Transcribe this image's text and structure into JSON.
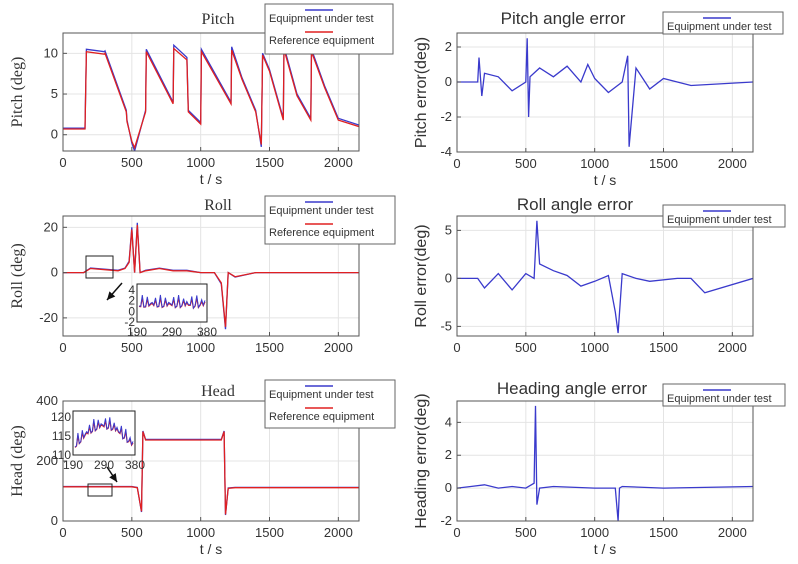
{
  "colors": {
    "test": "#3a3acc",
    "reference": "#e02020",
    "grid": "#e4e4e4",
    "axis": "#555555"
  },
  "chart_data": [
    {
      "type": "line",
      "title": "Pitch",
      "xlabel": "t / s",
      "ylabel": "Pitch (deg)",
      "xlim": [
        0,
        2150
      ],
      "ylim": [
        -2,
        12.5
      ],
      "xticks": [
        "0",
        "500",
        "1000",
        "1500",
        "2000"
      ],
      "xtick_values": [
        0,
        500,
        1000,
        1500,
        2000
      ],
      "yticks": [
        "0",
        "5",
        "10"
      ],
      "ytick_values": [
        0,
        5,
        10
      ],
      "legend": [
        "Equipment under test",
        "Reference equipment"
      ],
      "series": [
        {
          "name": "Equipment under test",
          "x": [
            0,
            160,
            170,
            300,
            305,
            460,
            465,
            500,
            520,
            600,
            605,
            800,
            805,
            900,
            910,
            1000,
            1005,
            1220,
            1225,
            1300,
            1400,
            1440,
            1450,
            1500,
            1550,
            1600,
            1605,
            1700,
            1800,
            1805,
            1900,
            2000,
            2150
          ],
          "y": [
            0.8,
            0.8,
            10.5,
            10.2,
            10.3,
            3,
            1.8,
            -1,
            -2,
            3,
            10.5,
            4,
            11,
            9.5,
            3,
            1.5,
            10.5,
            4,
            10.8,
            7,
            3,
            -1.5,
            10,
            8,
            5,
            2,
            10.8,
            5,
            2,
            10.5,
            6,
            2,
            1.2
          ]
        },
        {
          "name": "Reference equipment",
          "x": [
            0,
            160,
            170,
            300,
            305,
            460,
            465,
            500,
            520,
            600,
            605,
            800,
            805,
            900,
            910,
            1000,
            1005,
            1220,
            1225,
            1300,
            1400,
            1440,
            1450,
            1500,
            1550,
            1600,
            1605,
            1700,
            1800,
            1805,
            1900,
            2000,
            2150
          ],
          "y": [
            0.7,
            0.7,
            10.2,
            9.9,
            10.0,
            2.8,
            1.6,
            -0.8,
            -1.6,
            2.8,
            10.2,
            3.8,
            10.6,
            9.2,
            2.8,
            1.3,
            10.2,
            3.8,
            10.4,
            6.8,
            2.8,
            -1.2,
            9.8,
            7.8,
            4.8,
            1.8,
            10.5,
            4.8,
            1.8,
            10.2,
            5.8,
            1.8,
            1.0
          ]
        }
      ]
    },
    {
      "type": "line",
      "title": "Pitch angle error",
      "xlabel": "t / s",
      "ylabel": "Pitch error(deg)",
      "xlim": [
        0,
        2150
      ],
      "ylim": [
        -4,
        2.8
      ],
      "xticks": [
        "0",
        "500",
        "1000",
        "1500",
        "2000"
      ],
      "xtick_values": [
        0,
        500,
        1000,
        1500,
        2000
      ],
      "yticks": [
        "-4",
        "-2",
        "0",
        "2"
      ],
      "ytick_values": [
        -4,
        -2,
        0,
        2
      ],
      "legend": [
        "Equipment under test"
      ],
      "series": [
        {
          "name": "Equipment under test",
          "x": [
            0,
            150,
            160,
            180,
            200,
            300,
            400,
            500,
            510,
            520,
            530,
            600,
            700,
            800,
            900,
            950,
            1000,
            1100,
            1200,
            1240,
            1250,
            1300,
            1400,
            1500,
            1600,
            1700,
            2150
          ],
          "y": [
            0,
            0,
            1.4,
            -0.8,
            0.5,
            0.3,
            -0.5,
            0,
            2.5,
            -2,
            0.3,
            0.8,
            0.3,
            0.9,
            0,
            1,
            0.2,
            -0.6,
            0,
            1.5,
            -3.7,
            0.8,
            -0.4,
            0.2,
            0,
            -0.2,
            0
          ]
        }
      ]
    },
    {
      "type": "line",
      "title": "Roll",
      "xlabel": "",
      "ylabel": "Roll (deg)",
      "xlim": [
        0,
        2150
      ],
      "ylim": [
        -28,
        25
      ],
      "xticks": [
        "0",
        "500",
        "1000",
        "1500",
        "2000"
      ],
      "xtick_values": [
        0,
        500,
        1000,
        1500,
        2000
      ],
      "yticks": [
        "-20",
        "0",
        "20"
      ],
      "ytick_values": [
        -20,
        0,
        20
      ],
      "legend": [
        "Equipment under test",
        "Reference equipment"
      ],
      "inset_ticks": [
        "190",
        "290",
        "380"
      ],
      "inset_yticks": [
        "4",
        "2",
        "0",
        "-2"
      ],
      "series": [
        {
          "name": "Equipment under test",
          "x": [
            0,
            150,
            200,
            400,
            450,
            480,
            500,
            520,
            540,
            560,
            600,
            700,
            800,
            900,
            1000,
            1100,
            1150,
            1180,
            1200,
            1250,
            1400,
            2150
          ],
          "y": [
            0,
            0,
            2,
            1,
            2,
            5,
            20,
            0,
            22,
            0,
            1,
            2,
            1,
            1,
            0,
            0,
            -5,
            -25,
            0,
            -2,
            0,
            0
          ]
        },
        {
          "name": "Reference equipment",
          "x": [
            0,
            150,
            200,
            400,
            450,
            480,
            500,
            520,
            540,
            560,
            600,
            700,
            800,
            900,
            1000,
            1100,
            1150,
            1180,
            1200,
            1250,
            1400,
            2150
          ],
          "y": [
            0,
            0,
            1.8,
            0.8,
            1.8,
            4.5,
            19,
            0,
            21,
            0,
            0.8,
            1.8,
            0.8,
            0.8,
            0,
            0,
            -4.5,
            -24,
            0,
            -1.8,
            0,
            0
          ]
        }
      ]
    },
    {
      "type": "line",
      "title": "Roll angle error",
      "xlabel": "",
      "ylabel": "Roll error(deg)",
      "xlim": [
        0,
        2150
      ],
      "ylim": [
        -6,
        6.5
      ],
      "xticks": [
        "0",
        "500",
        "1000",
        "1500",
        "2000"
      ],
      "xtick_values": [
        0,
        500,
        1000,
        1500,
        2000
      ],
      "yticks": [
        "-5",
        "0",
        "5"
      ],
      "ytick_values": [
        -5,
        0,
        5
      ],
      "legend": [
        "Equipment under test"
      ],
      "series": [
        {
          "name": "Equipment under test",
          "x": [
            0,
            150,
            200,
            300,
            400,
            500,
            560,
            580,
            600,
            700,
            800,
            900,
            1000,
            1100,
            1150,
            1170,
            1200,
            1300,
            1400,
            1600,
            1700,
            1800,
            2150
          ],
          "y": [
            0,
            0,
            -1,
            0.5,
            -1.2,
            0.5,
            0,
            6,
            1.5,
            0.8,
            0.3,
            -0.8,
            -0.3,
            0.3,
            -3.5,
            -5.7,
            0.5,
            0,
            -0.3,
            0,
            0,
            -1.5,
            0
          ]
        }
      ]
    },
    {
      "type": "line",
      "title": "Head",
      "xlabel": "t / s",
      "ylabel": "Head (deg)",
      "xlim": [
        0,
        2150
      ],
      "ylim": [
        0,
        400
      ],
      "xticks": [
        "0",
        "500",
        "1000",
        "1500",
        "2000"
      ],
      "xtick_values": [
        0,
        500,
        1000,
        1500,
        2000
      ],
      "yticks": [
        "0",
        "200",
        "400"
      ],
      "ytick_values": [
        0,
        200,
        400
      ],
      "legend": [
        "Equipment under test",
        "Reference equipment"
      ],
      "inset_ticks": [
        "190",
        "290",
        "380"
      ],
      "inset_yticks": [
        "120",
        "115",
        "110"
      ],
      "series": [
        {
          "name": "Equipment under test",
          "x": [
            0,
            500,
            540,
            570,
            580,
            600,
            1150,
            1170,
            1180,
            1200,
            1250,
            2150
          ],
          "y": [
            115,
            115,
            112,
            30,
            300,
            272,
            272,
            300,
            20,
            110,
            112,
            112
          ]
        },
        {
          "name": "Reference equipment",
          "x": [
            0,
            500,
            540,
            570,
            580,
            600,
            1150,
            1170,
            1180,
            1200,
            1250,
            2150
          ],
          "y": [
            114,
            114,
            111,
            32,
            298,
            270,
            270,
            298,
            22,
            109,
            111,
            111
          ]
        }
      ]
    },
    {
      "type": "line",
      "title": "Heading angle error",
      "xlabel": "t / s",
      "ylabel": "Heading  error(deg)",
      "xlim": [
        0,
        2150
      ],
      "ylim": [
        -2,
        5.3
      ],
      "xticks": [
        "0",
        "500",
        "1000",
        "1500",
        "2000"
      ],
      "xtick_values": [
        0,
        500,
        1000,
        1500,
        2000
      ],
      "yticks": [
        "-2",
        "0",
        "2",
        "4"
      ],
      "ytick_values": [
        -2,
        0,
        2,
        4
      ],
      "legend": [
        "Equipment under test"
      ],
      "series": [
        {
          "name": "Equipment under test",
          "x": [
            0,
            100,
            200,
            300,
            400,
            500,
            560,
            570,
            580,
            600,
            700,
            1000,
            1150,
            1170,
            1180,
            1200,
            1500,
            2150
          ],
          "y": [
            0,
            0.1,
            0.2,
            0,
            0.1,
            0,
            0.3,
            5,
            -1,
            0,
            0.1,
            0,
            0,
            -2,
            0,
            0.1,
            0,
            0.1
          ]
        }
      ]
    }
  ]
}
